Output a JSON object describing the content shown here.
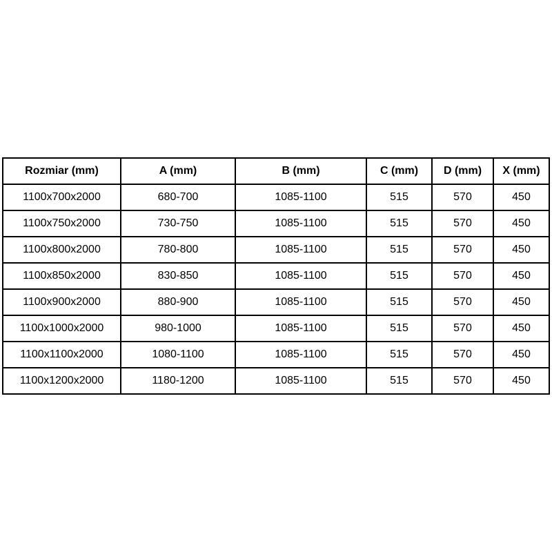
{
  "colors": {
    "background": "#ffffff",
    "border": "#000000",
    "text": "#000000"
  },
  "chart_data": {
    "type": "table",
    "title": "",
    "columns": [
      "Rozmiar (mm)",
      "A (mm)",
      "B (mm)",
      "C (mm)",
      "D (mm)",
      "X (mm)"
    ],
    "rows": [
      [
        "1100x700x2000",
        "680-700",
        "1085-1100",
        "515",
        "570",
        "450"
      ],
      [
        "1100x750x2000",
        "730-750",
        "1085-1100",
        "515",
        "570",
        "450"
      ],
      [
        "1100x800x2000",
        "780-800",
        "1085-1100",
        "515",
        "570",
        "450"
      ],
      [
        "1100x850x2000",
        "830-850",
        "1085-1100",
        "515",
        "570",
        "450"
      ],
      [
        "1100x900x2000",
        "880-900",
        "1085-1100",
        "515",
        "570",
        "450"
      ],
      [
        "1100x1000x2000",
        "980-1000",
        "1085-1100",
        "515",
        "570",
        "450"
      ],
      [
        "1100x1100x2000",
        "1080-1100",
        "1085-1100",
        "515",
        "570",
        "450"
      ],
      [
        "1100x1200x2000",
        "1180-1200",
        "1085-1100",
        "515",
        "570",
        "450"
      ]
    ]
  }
}
